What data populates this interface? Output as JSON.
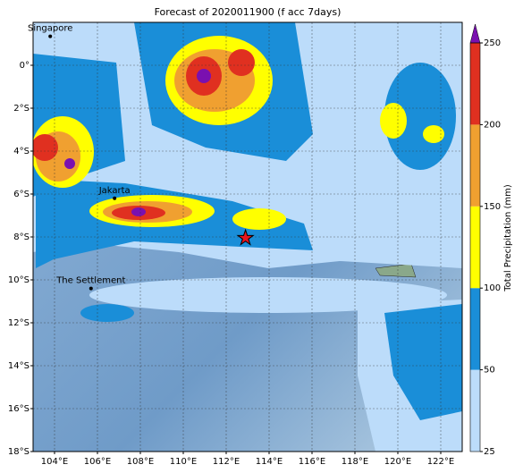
{
  "chart_data": {
    "type": "map",
    "title": "Forecast of 2020011900 (f acc 7days)",
    "xlim": [
      103,
      123
    ],
    "ylim": [
      -18,
      2
    ],
    "xticks": [
      {
        "value": 104,
        "label": "104°E"
      },
      {
        "value": 106,
        "label": "106°E"
      },
      {
        "value": 108,
        "label": "108°E"
      },
      {
        "value": 110,
        "label": "110°E"
      },
      {
        "value": 112,
        "label": "112°E"
      },
      {
        "value": 114,
        "label": "114°E"
      },
      {
        "value": 116,
        "label": "116°E"
      },
      {
        "value": 118,
        "label": "118°E"
      },
      {
        "value": 120,
        "label": "120°E"
      },
      {
        "value": 122,
        "label": "122°E"
      }
    ],
    "yticks": [
      {
        "value": 0,
        "label": "0°"
      },
      {
        "value": -2,
        "label": "2°S"
      },
      {
        "value": -4,
        "label": "4°S"
      },
      {
        "value": -6,
        "label": "6°S"
      },
      {
        "value": -8,
        "label": "8°S"
      },
      {
        "value": -10,
        "label": "10°S"
      },
      {
        "value": -12,
        "label": "12°S"
      },
      {
        "value": -14,
        "label": "14°S"
      },
      {
        "value": -16,
        "label": "16°S"
      },
      {
        "value": -18,
        "label": "18°S"
      }
    ],
    "grid": true,
    "points": [
      {
        "name": "Singapore",
        "lon": 103.8,
        "lat": 1.35
      },
      {
        "name": "Jakarta",
        "lon": 106.8,
        "lat": -6.2
      },
      {
        "name": "The Settlement",
        "lon": 105.7,
        "lat": -10.4
      }
    ],
    "marker": {
      "lon": 112.9,
      "lat": -8.05,
      "color": "#e8141e"
    },
    "colorbar": {
      "label": "Total Precipitation (mm)",
      "levels": [
        25,
        50,
        100,
        150,
        200,
        250
      ],
      "colors": [
        "#bcdcfa",
        "#1a8ed8",
        "#ffff00",
        "#f0a030",
        "#e03020"
      ],
      "extend_color": "#7a10b0"
    }
  }
}
